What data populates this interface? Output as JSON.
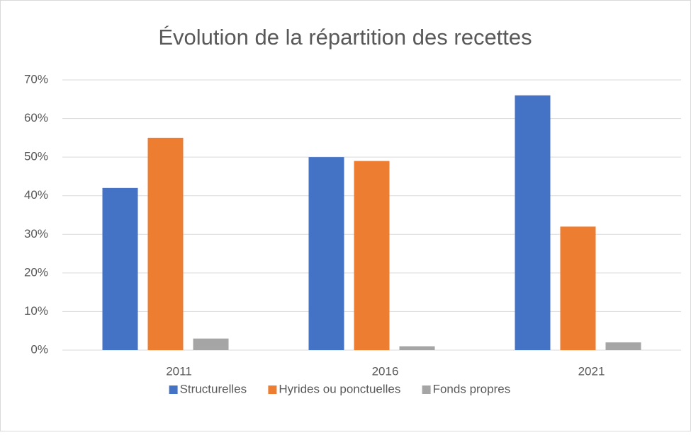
{
  "chart_data": {
    "type": "bar",
    "title": "Évolution de la répartition des recettes",
    "categories": [
      "2011",
      "2016",
      "2021"
    ],
    "series": [
      {
        "name": "Structurelles",
        "color": "#4472c4",
        "values": [
          42,
          50,
          66
        ]
      },
      {
        "name": "Hyrides ou ponctuelles",
        "color": "#ed7d31",
        "values": [
          55,
          49,
          32
        ]
      },
      {
        "name": "Fonds propres",
        "color": "#a5a5a5",
        "values": [
          3,
          1,
          2
        ]
      }
    ],
    "ylim": [
      0,
      70
    ],
    "yticks": [
      {
        "value": 0,
        "label": "0%"
      },
      {
        "value": 10,
        "label": "10%"
      },
      {
        "value": 20,
        "label": "20%"
      },
      {
        "value": 30,
        "label": "30%"
      },
      {
        "value": 40,
        "label": "40%"
      },
      {
        "value": 50,
        "label": "50%"
      },
      {
        "value": 60,
        "label": "60%"
      },
      {
        "value": 70,
        "label": "70%"
      }
    ],
    "grid": true,
    "legend": "bottom"
  }
}
